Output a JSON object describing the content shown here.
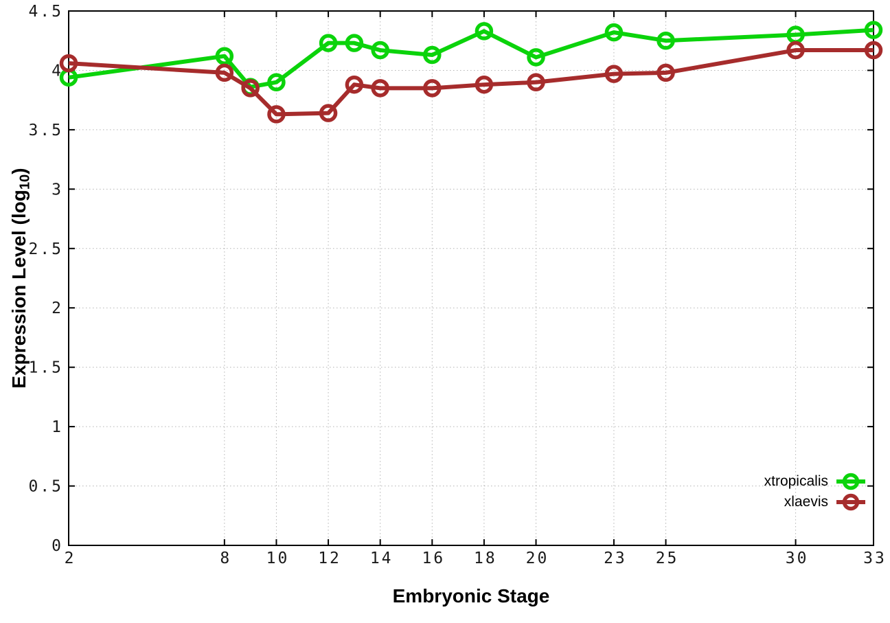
{
  "figure": {
    "background": "#ffffff",
    "border_color": "#000000",
    "grid_color": "#b3b3b3",
    "tick_label_color": "#1a1a1a"
  },
  "chart_data": {
    "type": "line",
    "title": "",
    "xlabel": "Embryonic Stage",
    "ylabel": "Expression Level (log10)",
    "ylabel_parts": {
      "prefix": "Expression Level (log",
      "sub": "10",
      "suffix": ")"
    },
    "xlim": [
      2,
      33
    ],
    "ylim": [
      0,
      4.5
    ],
    "grid": true,
    "legend_position": "bottom-right",
    "x_ticks": [
      2,
      8,
      10,
      12,
      14,
      16,
      18,
      20,
      23,
      25,
      30,
      33
    ],
    "x_tick_labels": [
      "2",
      "8",
      "10",
      "12",
      "14",
      "16",
      "18",
      "20",
      "23",
      "25",
      "30",
      "33"
    ],
    "y_ticks": [
      0,
      0.5,
      1,
      1.5,
      2,
      2.5,
      3,
      3.5,
      4,
      4.5
    ],
    "y_tick_labels": [
      "0",
      "0.5",
      "1",
      "1.5",
      "2",
      "2.5",
      "3",
      "3.5",
      "4",
      "4.5"
    ],
    "x": [
      2,
      8,
      9,
      10,
      12,
      13,
      14,
      16,
      18,
      20,
      23,
      25,
      30,
      33
    ],
    "series": [
      {
        "name": "xtropicalis",
        "color": "#0bd30b",
        "values": [
          3.94,
          4.12,
          3.86,
          3.9,
          4.23,
          4.23,
          4.17,
          4.13,
          4.33,
          4.11,
          4.32,
          4.25,
          4.3,
          4.34
        ]
      },
      {
        "name": "xlaevis",
        "color": "#a62c2c",
        "values": [
          4.06,
          3.98,
          3.85,
          3.63,
          3.64,
          3.88,
          3.85,
          3.85,
          3.88,
          3.9,
          3.97,
          3.98,
          4.17,
          4.17
        ]
      }
    ]
  }
}
